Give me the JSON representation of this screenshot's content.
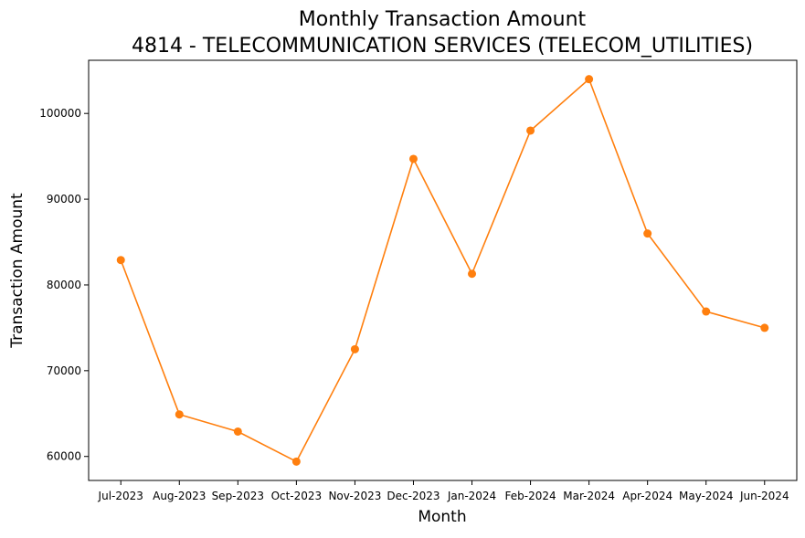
{
  "chart_data": {
    "type": "line",
    "title": "Monthly Transaction Amount",
    "subtitle": "4814 - TELECOMMUNICATION SERVICES (TELECOM_UTILITIES)",
    "xlabel": "Month",
    "ylabel": "Transaction Amount",
    "categories": [
      "Jul-2023",
      "Aug-2023",
      "Sep-2023",
      "Oct-2023",
      "Nov-2023",
      "Dec-2023",
      "Jan-2024",
      "Feb-2024",
      "Mar-2024",
      "Apr-2024",
      "May-2024",
      "Jun-2024"
    ],
    "series": [
      {
        "values": [
          82900,
          64900,
          62900,
          59400,
          72500,
          94700,
          81300,
          98000,
          104000,
          86000,
          76900,
          75000
        ],
        "color": "#ff7f0e",
        "marker": "circle"
      }
    ],
    "ylim": [
      57200,
      106200
    ],
    "yticks": [
      60000,
      70000,
      80000,
      90000,
      100000
    ],
    "ytick_labels": [
      "60000",
      "70000",
      "80000",
      "90000",
      "100000"
    ],
    "grid": false,
    "legend": "none"
  }
}
